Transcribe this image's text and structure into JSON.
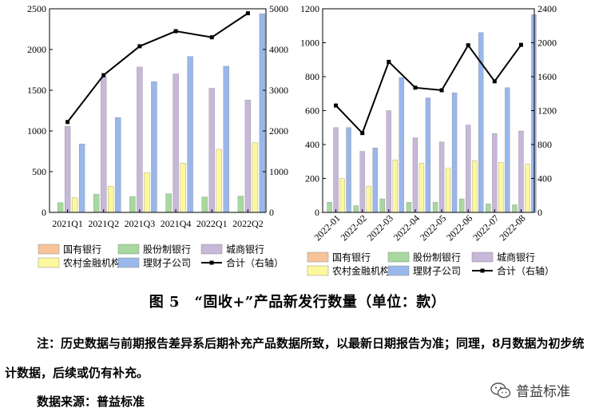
{
  "charts": [
    {
      "type": "bar",
      "categories": [
        "2021Q1",
        "2021Q2",
        "2021Q3",
        "2021Q4",
        "2022Q1",
        "2022Q2"
      ],
      "ylim": [
        0,
        2500
      ],
      "yticks": [
        0,
        500,
        1000,
        1500,
        2000,
        2500
      ],
      "y2lim": [
        0,
        5000
      ],
      "y2ticks": [
        0,
        1000,
        2000,
        3000,
        4000,
        5000
      ],
      "series": [
        {
          "name": "国有银行",
          "color": "#f7c49a",
          "values": [
            2,
            2,
            2,
            2,
            2,
            2
          ]
        },
        {
          "name": "股份制银行",
          "color": "#a8d8a0",
          "values": [
            120,
            225,
            195,
            230,
            190,
            200
          ]
        },
        {
          "name": "城商银行",
          "color": "#c7b7d8",
          "values": [
            1055,
            1660,
            1785,
            1700,
            1525,
            1380
          ]
        },
        {
          "name": "农村金融机构",
          "color": "#fdf79e",
          "values": [
            180,
            320,
            490,
            605,
            775,
            855
          ]
        },
        {
          "name": "理财子公司",
          "color": "#9ab7ea",
          "values": [
            840,
            1165,
            1605,
            1915,
            1795,
            2440
          ]
        }
      ],
      "line": {
        "name": "合计（右轴）",
        "values": [
          2220,
          3370,
          4080,
          4450,
          4300,
          4890
        ]
      }
    },
    {
      "type": "bar",
      "categories": [
        "2022-01",
        "2022-02",
        "2022-03",
        "2022-04",
        "2022-05",
        "2022-06",
        "2022-07",
        "2022-08"
      ],
      "ylim": [
        0,
        1200
      ],
      "yticks": [
        0,
        200,
        400,
        600,
        800,
        1000,
        1200
      ],
      "y2lim": [
        0,
        2400
      ],
      "y2ticks": [
        0,
        400,
        800,
        1200,
        1600,
        2000,
        2400
      ],
      "series": [
        {
          "name": "国有银行",
          "color": "#f7c49a",
          "values": [
            1,
            1,
            1,
            1,
            1,
            1,
            1,
            1
          ]
        },
        {
          "name": "股份制银行",
          "color": "#a8d8a0",
          "values": [
            60,
            40,
            80,
            60,
            60,
            80,
            50,
            45
          ]
        },
        {
          "name": "城商银行",
          "color": "#c7b7d8",
          "values": [
            500,
            360,
            600,
            440,
            415,
            515,
            465,
            480
          ]
        },
        {
          "name": "农村金融机构",
          "color": "#fdf79e",
          "values": [
            200,
            155,
            310,
            290,
            260,
            305,
            295,
            285
          ]
        },
        {
          "name": "理财子公司",
          "color": "#9ab7ea",
          "values": [
            500,
            380,
            795,
            675,
            705,
            1060,
            735,
            1165
          ]
        }
      ],
      "line": {
        "name": "合计（右轴）",
        "values": [
          1260,
          935,
          1775,
          1470,
          1440,
          1970,
          1545,
          1975
        ]
      }
    }
  ],
  "caption": "图 5　“固收+”产品新发行数量（单位：款）",
  "note": "注：历史数据与前期报告差异系后期补充产品数据所致，以最新日期报告为准；同理，8月数据为初步统计数据，后续或仍有补充。",
  "source": "数据来源：普益标准",
  "watermark": "普益标准"
}
